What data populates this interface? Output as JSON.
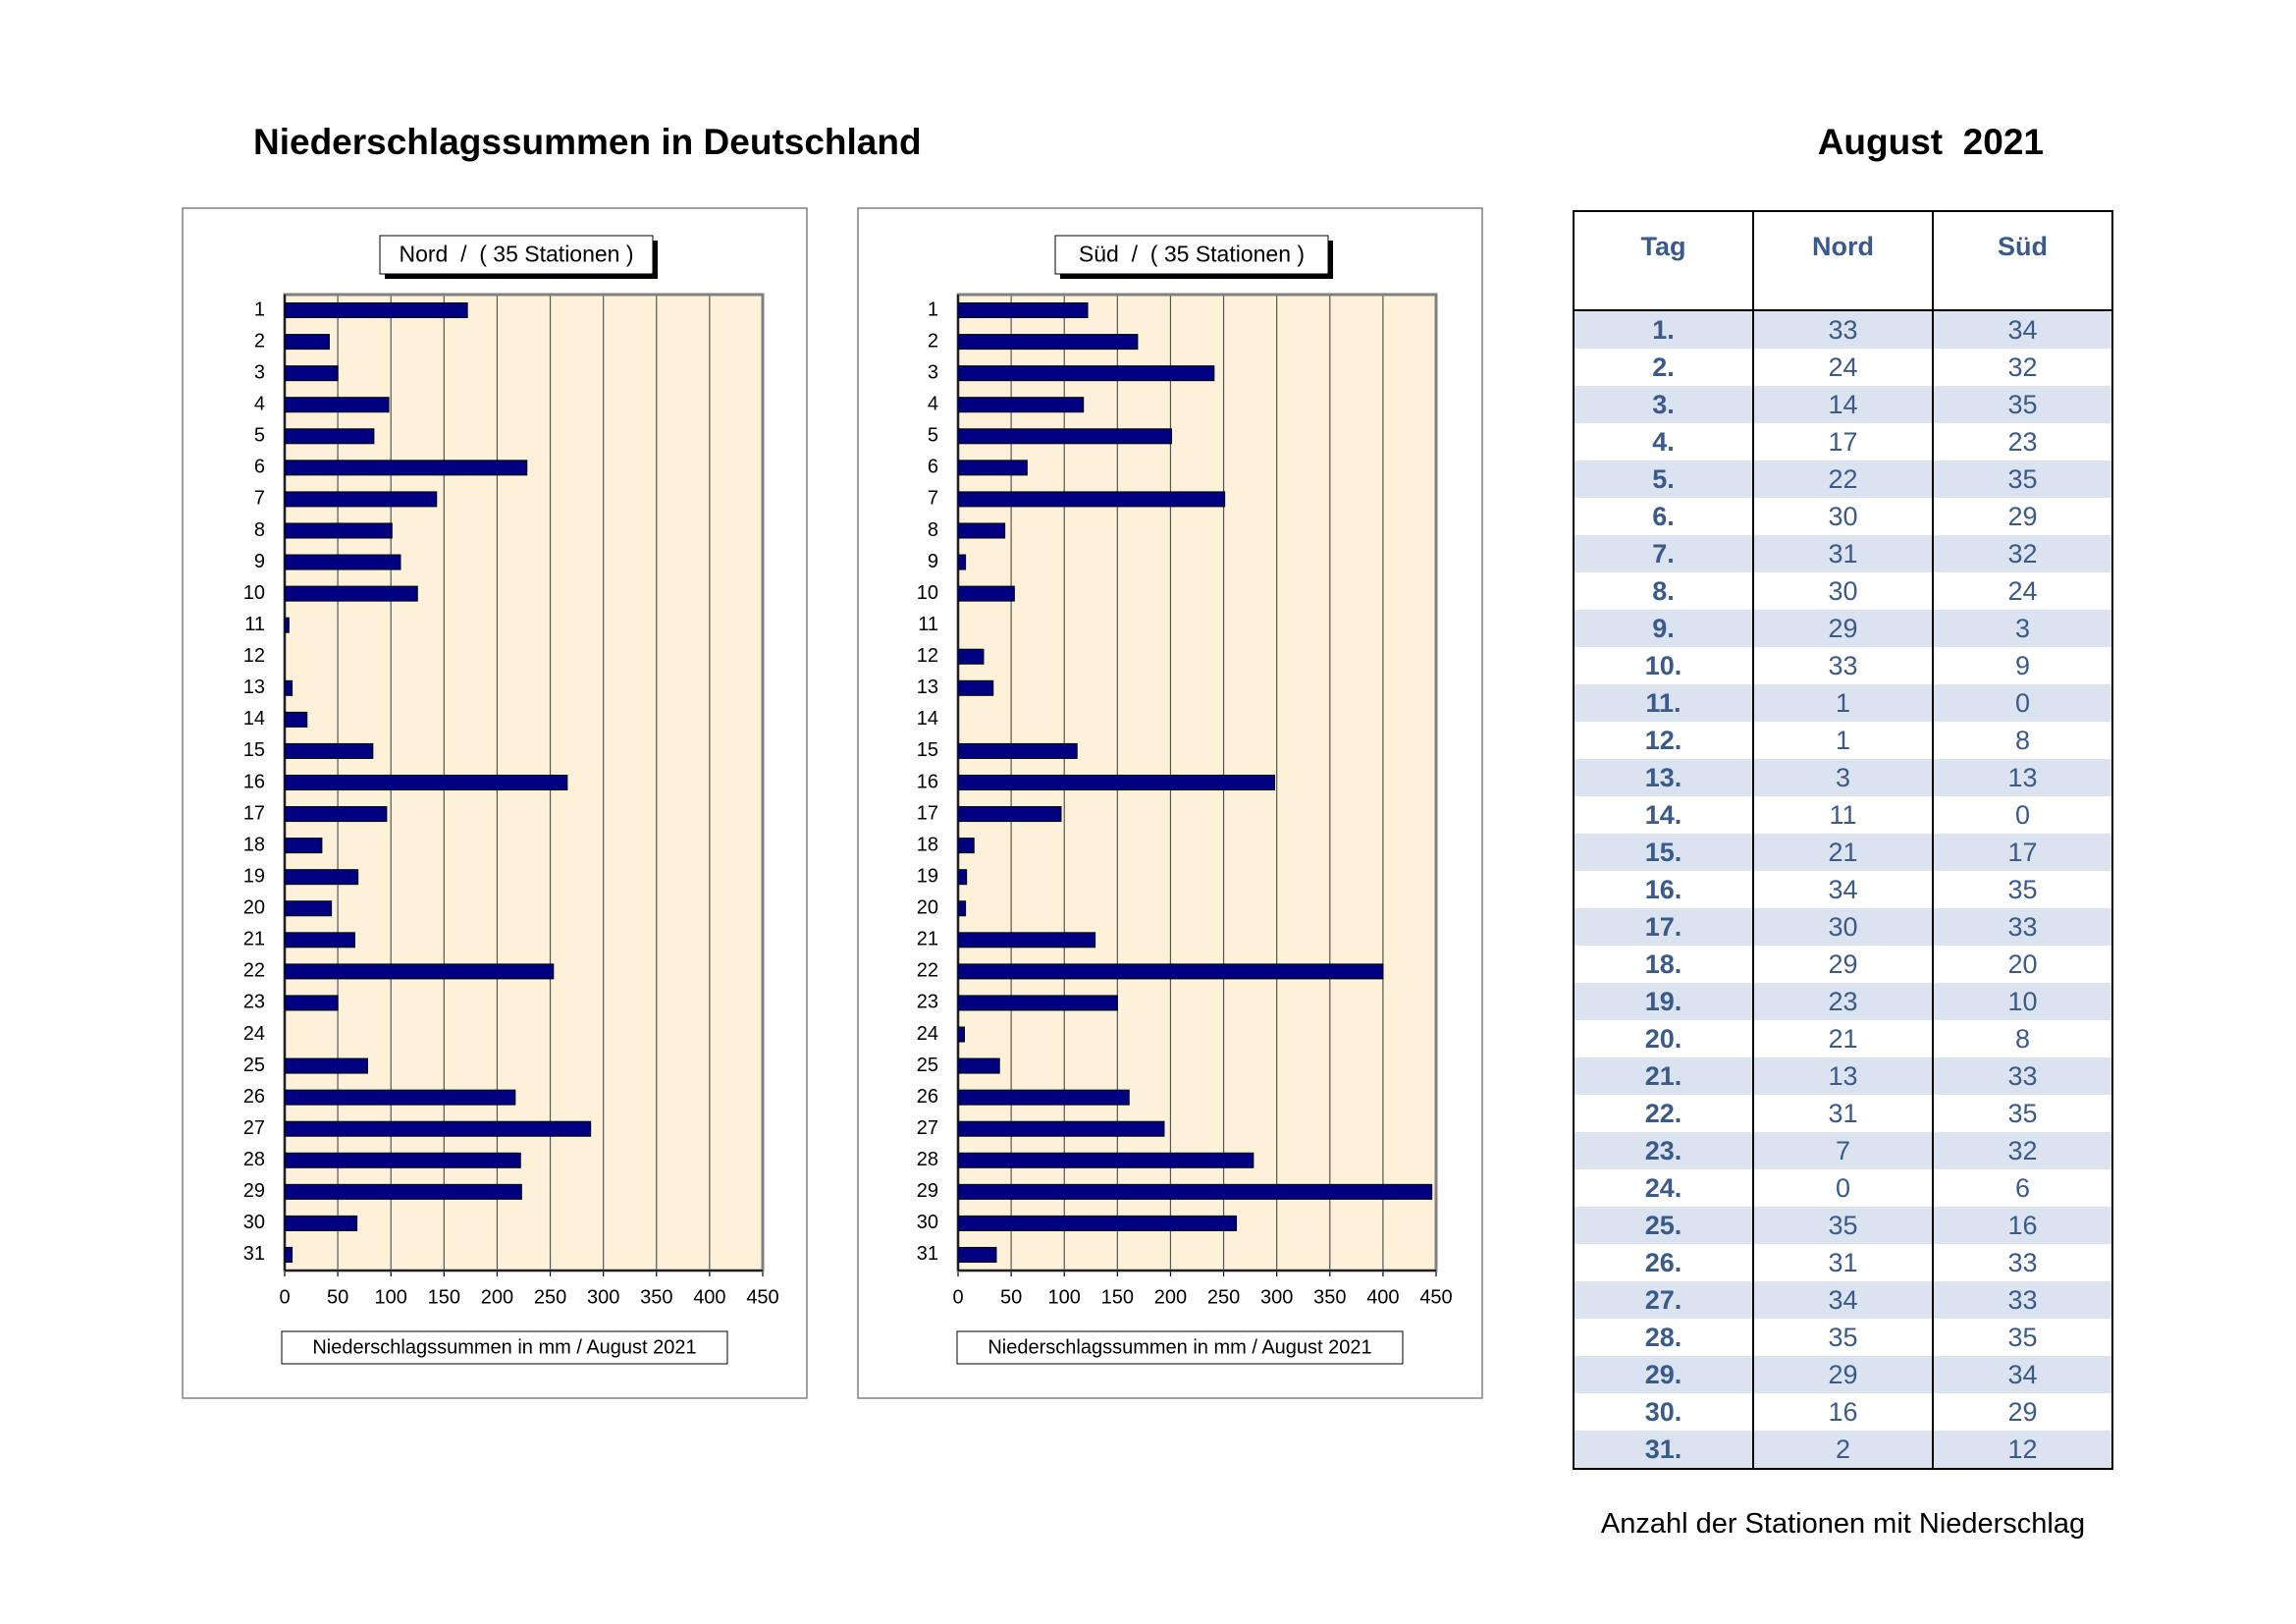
{
  "header": {
    "title": "Niederschlagssummen in Deutschland",
    "period": "August  2021"
  },
  "chart_data": [
    {
      "type": "bar",
      "orientation": "horizontal",
      "title": "Nord  /  ( 35 Stationen )",
      "x_label": "Niederschlagssummen in mm / August 2021",
      "categories": [
        "1",
        "2",
        "3",
        "4",
        "5",
        "6",
        "7",
        "8",
        "9",
        "10",
        "11",
        "12",
        "13",
        "14",
        "15",
        "16",
        "17",
        "18",
        "19",
        "20",
        "21",
        "22",
        "23",
        "24",
        "25",
        "26",
        "27",
        "28",
        "29",
        "30",
        "31"
      ],
      "values": [
        172,
        42,
        50,
        98,
        84,
        228,
        143,
        101,
        109,
        125,
        4,
        0,
        7,
        21,
        83,
        266,
        96,
        35,
        69,
        44,
        66,
        253,
        50,
        0,
        78,
        217,
        288,
        222,
        223,
        68,
        7
      ],
      "color": "#000080",
      "background": "#fdf2d9",
      "xlim": [
        0,
        450
      ],
      "xticks": [
        0,
        50,
        100,
        150,
        200,
        250,
        300,
        350,
        400,
        450
      ],
      "grid": true
    },
    {
      "type": "bar",
      "orientation": "horizontal",
      "title": "Süd  /  ( 35 Stationen )",
      "x_label": "Niederschlagssummen in mm / August 2021",
      "categories": [
        "1",
        "2",
        "3",
        "4",
        "5",
        "6",
        "7",
        "8",
        "9",
        "10",
        "11",
        "12",
        "13",
        "14",
        "15",
        "16",
        "17",
        "18",
        "19",
        "20",
        "21",
        "22",
        "23",
        "24",
        "25",
        "26",
        "27",
        "28",
        "29",
        "30",
        "31"
      ],
      "values": [
        122,
        169,
        241,
        118,
        201,
        65,
        251,
        44,
        7,
        53,
        0,
        24,
        33,
        0,
        112,
        298,
        97,
        15,
        8,
        7,
        129,
        400,
        150,
        6,
        39,
        161,
        194,
        278,
        446,
        262,
        36
      ],
      "color": "#000080",
      "background": "#fdf2d9",
      "xlim": [
        0,
        450
      ],
      "xticks": [
        0,
        50,
        100,
        150,
        200,
        250,
        300,
        350,
        400,
        450
      ],
      "grid": true
    }
  ],
  "table": {
    "columns": [
      "Tag",
      "Nord",
      "Süd"
    ],
    "rows": [
      [
        "1.",
        33,
        34
      ],
      [
        "2.",
        24,
        32
      ],
      [
        "3.",
        14,
        35
      ],
      [
        "4.",
        17,
        23
      ],
      [
        "5.",
        22,
        35
      ],
      [
        "6.",
        30,
        29
      ],
      [
        "7.",
        31,
        32
      ],
      [
        "8.",
        30,
        24
      ],
      [
        "9.",
        29,
        3
      ],
      [
        "10.",
        33,
        9
      ],
      [
        "11.",
        1,
        0
      ],
      [
        "12.",
        1,
        8
      ],
      [
        "13.",
        3,
        13
      ],
      [
        "14.",
        11,
        0
      ],
      [
        "15.",
        21,
        17
      ],
      [
        "16.",
        34,
        35
      ],
      [
        "17.",
        30,
        33
      ],
      [
        "18.",
        29,
        20
      ],
      [
        "19.",
        23,
        10
      ],
      [
        "20.",
        21,
        8
      ],
      [
        "21.",
        13,
        33
      ],
      [
        "22.",
        31,
        35
      ],
      [
        "23.",
        7,
        32
      ],
      [
        "24.",
        0,
        6
      ],
      [
        "25.",
        35,
        16
      ],
      [
        "26.",
        31,
        33
      ],
      [
        "27.",
        34,
        33
      ],
      [
        "28.",
        35,
        35
      ],
      [
        "29.",
        29,
        34
      ],
      [
        "30.",
        16,
        29
      ],
      [
        "31.",
        2,
        12
      ]
    ],
    "caption": "Anzahl der Stationen mit Niederschlag"
  }
}
